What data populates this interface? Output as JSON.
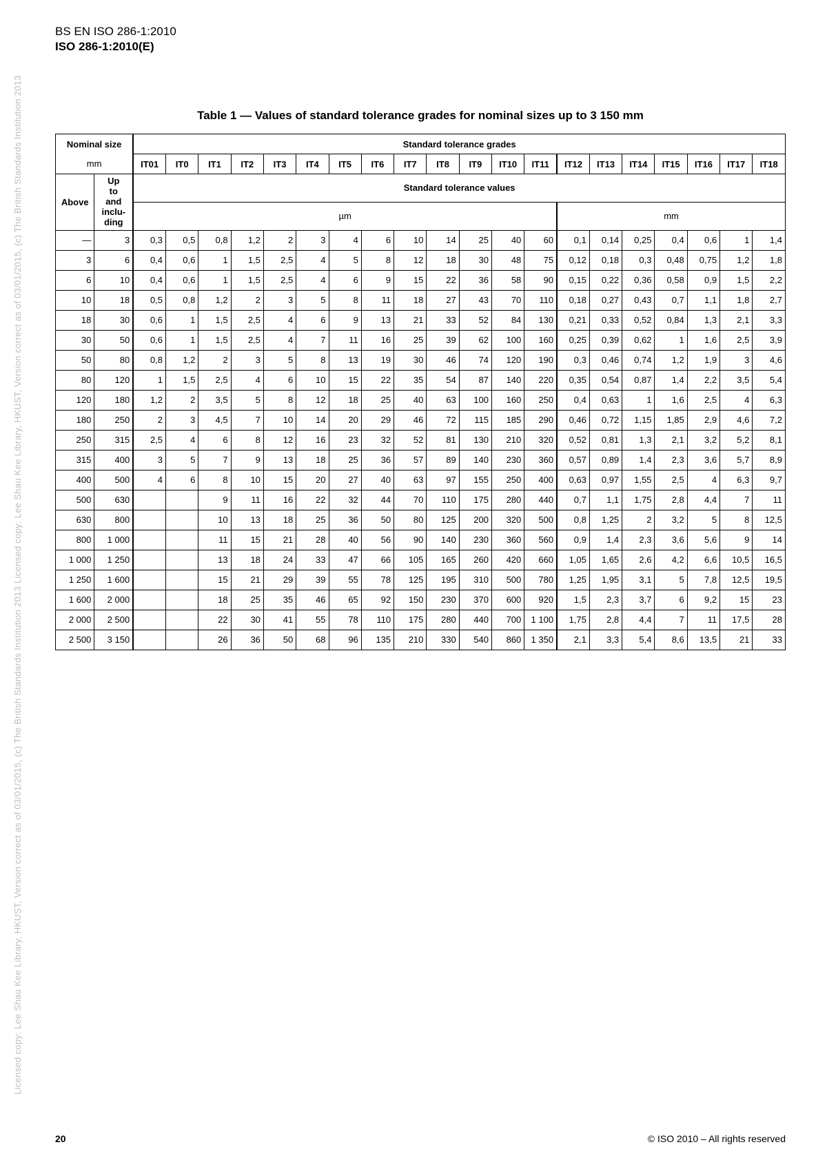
{
  "watermark": "Licensed copy: Lee Shau Kee Library, HKUST, Version correct as of 03/01/2015, (c) The British Standards Institution 2013 Licensed copy: Lee Shau Kee Library, HKUST, Version correct as of 03/01/2015, (c) The British Standards Institution 2013",
  "header": {
    "line1": "BS EN ISO 286-1:2010",
    "line2": "ISO 286-1:2010(E)"
  },
  "table_title": "Table 1 — Values of standard tolerance grades for nominal sizes up to 3 150 mm",
  "col_headers": {
    "nominal_size": "Nominal size",
    "nominal_unit": "mm",
    "grades_title": "Standard tolerance grades",
    "above": "Above",
    "upto": "Up to and inclu-ding",
    "std_values": "Standard tolerance values",
    "unit_um": "µm",
    "unit_mm": "mm",
    "it": [
      "IT01",
      "IT0",
      "IT1",
      "IT2",
      "IT3",
      "IT4",
      "IT5",
      "IT6",
      "IT7",
      "IT8",
      "IT9",
      "IT10",
      "IT11",
      "IT12",
      "IT13",
      "IT14",
      "IT15",
      "IT16",
      "IT17",
      "IT18"
    ]
  },
  "rows": [
    {
      "above": "—",
      "upto": "3",
      "vals": [
        "0,3",
        "0,5",
        "0,8",
        "1,2",
        "2",
        "3",
        "4",
        "6",
        "10",
        "14",
        "25",
        "40",
        "60",
        "0,1",
        "0,14",
        "0,25",
        "0,4",
        "0,6",
        "1",
        "1,4"
      ]
    },
    {
      "above": "3",
      "upto": "6",
      "vals": [
        "0,4",
        "0,6",
        "1",
        "1,5",
        "2,5",
        "4",
        "5",
        "8",
        "12",
        "18",
        "30",
        "48",
        "75",
        "0,12",
        "0,18",
        "0,3",
        "0,48",
        "0,75",
        "1,2",
        "1,8"
      ]
    },
    {
      "above": "6",
      "upto": "10",
      "vals": [
        "0,4",
        "0,6",
        "1",
        "1,5",
        "2,5",
        "4",
        "6",
        "9",
        "15",
        "22",
        "36",
        "58",
        "90",
        "0,15",
        "0,22",
        "0,36",
        "0,58",
        "0,9",
        "1,5",
        "2,2"
      ]
    },
    {
      "above": "10",
      "upto": "18",
      "vals": [
        "0,5",
        "0,8",
        "1,2",
        "2",
        "3",
        "5",
        "8",
        "11",
        "18",
        "27",
        "43",
        "70",
        "110",
        "0,18",
        "0,27",
        "0,43",
        "0,7",
        "1,1",
        "1,8",
        "2,7"
      ]
    },
    {
      "above": "18",
      "upto": "30",
      "vals": [
        "0,6",
        "1",
        "1,5",
        "2,5",
        "4",
        "6",
        "9",
        "13",
        "21",
        "33",
        "52",
        "84",
        "130",
        "0,21",
        "0,33",
        "0,52",
        "0,84",
        "1,3",
        "2,1",
        "3,3"
      ]
    },
    {
      "above": "30",
      "upto": "50",
      "vals": [
        "0,6",
        "1",
        "1,5",
        "2,5",
        "4",
        "7",
        "11",
        "16",
        "25",
        "39",
        "62",
        "100",
        "160",
        "0,25",
        "0,39",
        "0,62",
        "1",
        "1,6",
        "2,5",
        "3,9"
      ]
    },
    {
      "above": "50",
      "upto": "80",
      "vals": [
        "0,8",
        "1,2",
        "2",
        "3",
        "5",
        "8",
        "13",
        "19",
        "30",
        "46",
        "74",
        "120",
        "190",
        "0,3",
        "0,46",
        "0,74",
        "1,2",
        "1,9",
        "3",
        "4,6"
      ]
    },
    {
      "above": "80",
      "upto": "120",
      "vals": [
        "1",
        "1,5",
        "2,5",
        "4",
        "6",
        "10",
        "15",
        "22",
        "35",
        "54",
        "87",
        "140",
        "220",
        "0,35",
        "0,54",
        "0,87",
        "1,4",
        "2,2",
        "3,5",
        "5,4"
      ]
    },
    {
      "above": "120",
      "upto": "180",
      "vals": [
        "1,2",
        "2",
        "3,5",
        "5",
        "8",
        "12",
        "18",
        "25",
        "40",
        "63",
        "100",
        "160",
        "250",
        "0,4",
        "0,63",
        "1",
        "1,6",
        "2,5",
        "4",
        "6,3"
      ]
    },
    {
      "above": "180",
      "upto": "250",
      "vals": [
        "2",
        "3",
        "4,5",
        "7",
        "10",
        "14",
        "20",
        "29",
        "46",
        "72",
        "115",
        "185",
        "290",
        "0,46",
        "0,72",
        "1,15",
        "1,85",
        "2,9",
        "4,6",
        "7,2"
      ]
    },
    {
      "above": "250",
      "upto": "315",
      "vals": [
        "2,5",
        "4",
        "6",
        "8",
        "12",
        "16",
        "23",
        "32",
        "52",
        "81",
        "130",
        "210",
        "320",
        "0,52",
        "0,81",
        "1,3",
        "2,1",
        "3,2",
        "5,2",
        "8,1"
      ]
    },
    {
      "above": "315",
      "upto": "400",
      "vals": [
        "3",
        "5",
        "7",
        "9",
        "13",
        "18",
        "25",
        "36",
        "57",
        "89",
        "140",
        "230",
        "360",
        "0,57",
        "0,89",
        "1,4",
        "2,3",
        "3,6",
        "5,7",
        "8,9"
      ]
    },
    {
      "above": "400",
      "upto": "500",
      "vals": [
        "4",
        "6",
        "8",
        "10",
        "15",
        "20",
        "27",
        "40",
        "63",
        "97",
        "155",
        "250",
        "400",
        "0,63",
        "0,97",
        "1,55",
        "2,5",
        "4",
        "6,3",
        "9,7"
      ]
    },
    {
      "above": "500",
      "upto": "630",
      "vals": [
        "",
        "",
        "9",
        "11",
        "16",
        "22",
        "32",
        "44",
        "70",
        "110",
        "175",
        "280",
        "440",
        "0,7",
        "1,1",
        "1,75",
        "2,8",
        "4,4",
        "7",
        "11"
      ]
    },
    {
      "above": "630",
      "upto": "800",
      "vals": [
        "",
        "",
        "10",
        "13",
        "18",
        "25",
        "36",
        "50",
        "80",
        "125",
        "200",
        "320",
        "500",
        "0,8",
        "1,25",
        "2",
        "3,2",
        "5",
        "8",
        "12,5"
      ]
    },
    {
      "above": "800",
      "upto": "1 000",
      "vals": [
        "",
        "",
        "11",
        "15",
        "21",
        "28",
        "40",
        "56",
        "90",
        "140",
        "230",
        "360",
        "560",
        "0,9",
        "1,4",
        "2,3",
        "3,6",
        "5,6",
        "9",
        "14"
      ]
    },
    {
      "above": "1 000",
      "upto": "1 250",
      "vals": [
        "",
        "",
        "13",
        "18",
        "24",
        "33",
        "47",
        "66",
        "105",
        "165",
        "260",
        "420",
        "660",
        "1,05",
        "1,65",
        "2,6",
        "4,2",
        "6,6",
        "10,5",
        "16,5"
      ]
    },
    {
      "above": "1 250",
      "upto": "1 600",
      "vals": [
        "",
        "",
        "15",
        "21",
        "29",
        "39",
        "55",
        "78",
        "125",
        "195",
        "310",
        "500",
        "780",
        "1,25",
        "1,95",
        "3,1",
        "5",
        "7,8",
        "12,5",
        "19,5"
      ]
    },
    {
      "above": "1 600",
      "upto": "2 000",
      "vals": [
        "",
        "",
        "18",
        "25",
        "35",
        "46",
        "65",
        "92",
        "150",
        "230",
        "370",
        "600",
        "920",
        "1,5",
        "2,3",
        "3,7",
        "6",
        "9,2",
        "15",
        "23"
      ]
    },
    {
      "above": "2 000",
      "upto": "2 500",
      "vals": [
        "",
        "",
        "22",
        "30",
        "41",
        "55",
        "78",
        "110",
        "175",
        "280",
        "440",
        "700",
        "1 100",
        "1,75",
        "2,8",
        "4,4",
        "7",
        "11",
        "17,5",
        "28"
      ]
    },
    {
      "above": "2 500",
      "upto": "3 150",
      "vals": [
        "",
        "",
        "26",
        "36",
        "50",
        "68",
        "96",
        "135",
        "210",
        "330",
        "540",
        "860",
        "1 350",
        "2,1",
        "3,3",
        "5,4",
        "8,6",
        "13,5",
        "21",
        "33"
      ]
    }
  ],
  "footer": {
    "page": "20",
    "copyright": "© ISO 2010 – All rights reserved"
  }
}
